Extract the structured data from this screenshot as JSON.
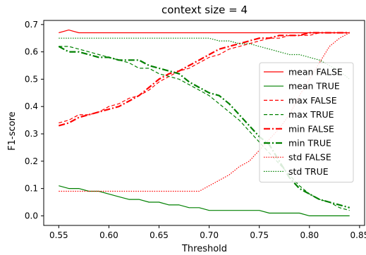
{
  "chart_data": {
    "type": "line",
    "title": "context size = 4",
    "xlabel": "Threshold",
    "ylabel": "F1-score",
    "xlim": [
      0.535,
      0.855
    ],
    "ylim": [
      -0.035,
      0.715
    ],
    "xticks": [
      "0.55",
      "0.60",
      "0.65",
      "0.70",
      "0.75",
      "0.80",
      "0.85"
    ],
    "yticks": [
      "0.0",
      "0.1",
      "0.2",
      "0.3",
      "0.4",
      "0.5",
      "0.6",
      "0.7"
    ],
    "grid": false,
    "legend_position": "center-right",
    "x": [
      0.55,
      0.56,
      0.57,
      0.58,
      0.59,
      0.6,
      0.61,
      0.62,
      0.63,
      0.64,
      0.65,
      0.66,
      0.67,
      0.68,
      0.69,
      0.7,
      0.71,
      0.72,
      0.73,
      0.74,
      0.75,
      0.76,
      0.77,
      0.78,
      0.79,
      0.8,
      0.81,
      0.82,
      0.83,
      0.84
    ],
    "series": [
      {
        "name": "mean FALSE",
        "color": "#ff0000",
        "dash": "solid",
        "width": 1.2,
        "values": [
          0.67,
          0.68,
          0.67,
          0.67,
          0.67,
          0.67,
          0.67,
          0.67,
          0.67,
          0.67,
          0.67,
          0.67,
          0.67,
          0.67,
          0.67,
          0.67,
          0.67,
          0.67,
          0.67,
          0.67,
          0.67,
          0.67,
          0.67,
          0.67,
          0.67,
          0.67,
          0.67,
          0.67,
          0.67,
          0.67
        ]
      },
      {
        "name": "mean TRUE",
        "color": "#008000",
        "dash": "solid",
        "width": 1.2,
        "values": [
          0.11,
          0.1,
          0.1,
          0.09,
          0.09,
          0.08,
          0.07,
          0.06,
          0.06,
          0.05,
          0.05,
          0.04,
          0.04,
          0.03,
          0.03,
          0.02,
          0.02,
          0.02,
          0.02,
          0.02,
          0.02,
          0.01,
          0.01,
          0.01,
          0.01,
          0.0,
          0.0,
          0.0,
          0.0,
          0.0
        ]
      },
      {
        "name": "max FALSE",
        "color": "#ff0000",
        "dash": "dashed",
        "width": 1.2,
        "values": [
          0.34,
          0.35,
          0.37,
          0.37,
          0.38,
          0.4,
          0.41,
          0.43,
          0.44,
          0.46,
          0.49,
          0.51,
          0.53,
          0.54,
          0.56,
          0.58,
          0.59,
          0.61,
          0.62,
          0.63,
          0.64,
          0.65,
          0.65,
          0.66,
          0.66,
          0.66,
          0.67,
          0.67,
          0.67,
          0.67
        ]
      },
      {
        "name": "max TRUE",
        "color": "#008000",
        "dash": "dashed",
        "width": 1.2,
        "values": [
          0.62,
          0.62,
          0.61,
          0.6,
          0.59,
          0.58,
          0.57,
          0.56,
          0.54,
          0.54,
          0.52,
          0.51,
          0.5,
          0.48,
          0.46,
          0.44,
          0.41,
          0.38,
          0.35,
          0.31,
          0.27,
          0.23,
          0.19,
          0.15,
          0.11,
          0.08,
          0.06,
          0.05,
          0.03,
          0.02
        ]
      },
      {
        "name": "min FALSE",
        "color": "#ff0000",
        "dash": "dashdot",
        "width": 2.2,
        "values": [
          0.33,
          0.34,
          0.36,
          0.37,
          0.38,
          0.39,
          0.4,
          0.42,
          0.44,
          0.47,
          0.5,
          0.52,
          0.53,
          0.55,
          0.57,
          0.59,
          0.61,
          0.62,
          0.63,
          0.64,
          0.65,
          0.65,
          0.66,
          0.66,
          0.66,
          0.67,
          0.67,
          0.67,
          0.67,
          0.67
        ]
      },
      {
        "name": "min TRUE",
        "color": "#008000",
        "dash": "dashdot",
        "width": 2.2,
        "values": [
          0.62,
          0.6,
          0.6,
          0.59,
          0.58,
          0.58,
          0.57,
          0.57,
          0.57,
          0.55,
          0.54,
          0.53,
          0.52,
          0.49,
          0.47,
          0.45,
          0.44,
          0.41,
          0.37,
          0.33,
          0.29,
          0.26,
          0.2,
          0.14,
          0.1,
          0.08,
          0.06,
          0.05,
          0.04,
          0.03
        ]
      },
      {
        "name": "std FALSE",
        "color": "#ff0000",
        "dash": "dotted",
        "width": 1.2,
        "values": [
          0.09,
          0.09,
          0.09,
          0.09,
          0.09,
          0.09,
          0.09,
          0.09,
          0.09,
          0.09,
          0.09,
          0.09,
          0.09,
          0.09,
          0.09,
          0.11,
          0.13,
          0.15,
          0.18,
          0.2,
          0.24,
          0.28,
          0.32,
          0.37,
          0.44,
          0.5,
          0.56,
          0.62,
          0.65,
          0.67
        ]
      },
      {
        "name": "std TRUE",
        "color": "#008000",
        "dash": "dotted",
        "width": 1.2,
        "values": [
          0.65,
          0.65,
          0.65,
          0.65,
          0.65,
          0.65,
          0.65,
          0.65,
          0.65,
          0.65,
          0.65,
          0.65,
          0.65,
          0.65,
          0.65,
          0.65,
          0.64,
          0.64,
          0.63,
          0.63,
          0.62,
          0.61,
          0.6,
          0.59,
          0.59,
          0.58,
          0.57,
          0.55,
          0.53,
          0.5
        ]
      }
    ]
  }
}
